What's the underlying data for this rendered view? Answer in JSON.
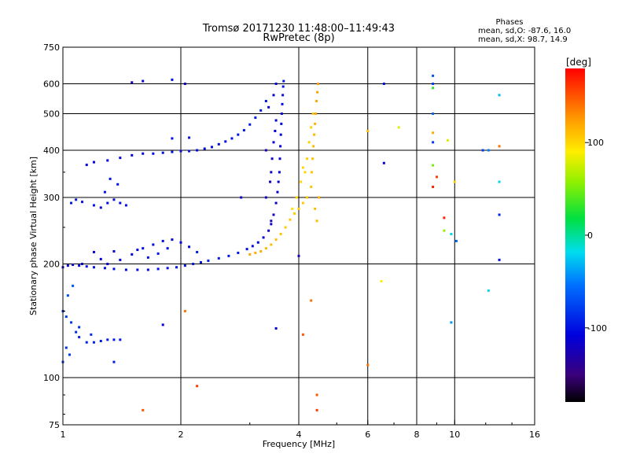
{
  "header": {
    "title": "Tromsø 20171230 11:48:00–11:49:43",
    "subtitle": "RwPretec (8p)",
    "stats_title": "Phases",
    "stats_o": "mean, sd,O: -87.6, 16.0",
    "stats_x": "mean, sd,X:  98.7, 14.9"
  },
  "chart_data": {
    "type": "scatter",
    "xlabel": "Frequency [MHz]",
    "ylabel": "Stationary phase Virtual Height [km]",
    "x_scale": "log",
    "y_scale": "log",
    "xlim": [
      1,
      16
    ],
    "ylim": [
      75,
      750
    ],
    "x_ticks": [
      1,
      2,
      4,
      6,
      8,
      10,
      16
    ],
    "x_tick_labels": [
      "1",
      "2",
      "4",
      "6",
      "8",
      "10",
      "16"
    ],
    "x_gridlines": [
      2,
      4,
      6,
      8,
      10
    ],
    "y_ticks": [
      75,
      100,
      200,
      300,
      400,
      500,
      600,
      750
    ],
    "y_tick_labels": [
      "75",
      "100",
      "200",
      "300",
      "400",
      "500",
      "600",
      "750"
    ],
    "y_gridlines": [
      100,
      200,
      300,
      400,
      500,
      600
    ],
    "grid": true,
    "colorbar": {
      "label": "[deg]",
      "range": [
        -180,
        180
      ],
      "ticks": [
        -100,
        0,
        100
      ],
      "tick_labels": [
        "-100",
        "0",
        "100"
      ]
    },
    "series": [
      {
        "points": [
          [
            1.0,
            196,
            -115
          ],
          [
            1.03,
            198,
            -112
          ],
          [
            1.06,
            199,
            -110
          ],
          [
            1.1,
            198,
            -108
          ],
          [
            1.15,
            197,
            -106
          ],
          [
            1.2,
            196,
            -105
          ],
          [
            1.28,
            195,
            -104
          ],
          [
            1.35,
            194,
            -103
          ],
          [
            1.45,
            193,
            -103
          ],
          [
            1.55,
            193,
            -103
          ],
          [
            1.65,
            193,
            -102
          ],
          [
            1.75,
            194,
            -101
          ],
          [
            1.85,
            195,
            -100
          ],
          [
            1.95,
            196,
            -100
          ],
          [
            2.05,
            198,
            -99
          ],
          [
            2.15,
            200,
            -98
          ],
          [
            2.25,
            202,
            -97
          ],
          [
            2.35,
            204,
            -96
          ],
          [
            2.5,
            207,
            -95
          ],
          [
            2.65,
            210,
            -96
          ],
          [
            2.8,
            214,
            -98
          ],
          [
            2.95,
            219,
            -101
          ],
          [
            3.05,
            223,
            -104
          ],
          [
            3.15,
            228,
            -108
          ],
          [
            3.25,
            235,
            -112
          ],
          [
            3.35,
            245,
            -116
          ],
          [
            3.4,
            255,
            -118
          ],
          [
            3.45,
            270,
            -120
          ],
          [
            3.5,
            290,
            -118
          ],
          [
            3.53,
            310,
            -115
          ],
          [
            3.55,
            330,
            -113
          ],
          [
            3.57,
            350,
            -112
          ],
          [
            3.58,
            380,
            -110
          ],
          [
            3.59,
            410,
            -108
          ],
          [
            3.6,
            440,
            -106
          ],
          [
            3.61,
            470,
            -104
          ],
          [
            3.62,
            500,
            -103
          ],
          [
            3.63,
            530,
            -102
          ],
          [
            3.64,
            560,
            -100
          ],
          [
            3.65,
            590,
            -99
          ],
          [
            3.66,
            610,
            -98
          ],
          [
            3.3,
            300,
            -120
          ],
          [
            3.4,
            350,
            -118
          ],
          [
            3.45,
            420,
            -115
          ],
          [
            3.5,
            480,
            -112
          ],
          [
            3.35,
            520,
            -110
          ],
          [
            3.45,
            560,
            -108
          ],
          [
            3.5,
            600,
            -105
          ],
          [
            3.3,
            400,
            -122
          ],
          [
            3.4,
            260,
            -125
          ],
          [
            3.38,
            330,
            -119
          ],
          [
            3.42,
            380,
            -117
          ],
          [
            3.48,
            450,
            -111
          ]
        ]
      },
      {
        "points": [
          [
            1.3,
            200,
            -110
          ],
          [
            1.4,
            205,
            -108
          ],
          [
            1.5,
            212,
            -106
          ],
          [
            1.6,
            220,
            -104
          ],
          [
            1.7,
            225,
            -103
          ],
          [
            1.8,
            230,
            -104
          ],
          [
            1.9,
            232,
            -106
          ],
          [
            2.0,
            228,
            -107
          ],
          [
            2.1,
            222,
            -105
          ],
          [
            1.25,
            206,
            -108
          ],
          [
            1.12,
            200,
            -115
          ],
          [
            1.2,
            215,
            -112
          ],
          [
            1.35,
            216,
            -110
          ],
          [
            1.55,
            218,
            -109
          ],
          [
            1.65,
            208,
            -100
          ],
          [
            1.75,
            213,
            -98
          ],
          [
            1.85,
            220,
            -102
          ],
          [
            2.2,
            215,
            -96
          ]
        ]
      },
      {
        "points": [
          [
            1.3,
            376,
            -108
          ],
          [
            1.4,
            382,
            -107
          ],
          [
            1.5,
            388,
            -106
          ],
          [
            1.6,
            392,
            -105
          ],
          [
            1.7,
            392,
            -104
          ],
          [
            1.8,
            394,
            -103
          ],
          [
            1.9,
            396,
            -103
          ],
          [
            2.0,
            398,
            -102
          ],
          [
            2.1,
            398,
            -101
          ],
          [
            2.2,
            400,
            -102
          ],
          [
            2.3,
            404,
            -103
          ],
          [
            2.4,
            408,
            -104
          ],
          [
            2.5,
            415,
            -103
          ],
          [
            2.6,
            422,
            -102
          ],
          [
            2.7,
            430,
            -100
          ],
          [
            2.8,
            440,
            -98
          ],
          [
            2.9,
            452,
            -97
          ],
          [
            3.0,
            468,
            -96
          ],
          [
            3.1,
            488,
            -95
          ],
          [
            3.2,
            510,
            -96
          ],
          [
            3.3,
            540,
            -97
          ],
          [
            1.15,
            366,
            -110
          ],
          [
            1.2,
            372,
            -109
          ],
          [
            1.9,
            430,
            -100
          ],
          [
            2.1,
            432,
            -99
          ]
        ]
      },
      {
        "points": [
          [
            1.05,
            290,
            -100
          ],
          [
            1.08,
            296,
            -98
          ],
          [
            1.12,
            292,
            -99
          ],
          [
            1.2,
            286,
            -101
          ],
          [
            1.25,
            282,
            -104
          ],
          [
            1.3,
            290,
            -103
          ],
          [
            1.35,
            296,
            -102
          ],
          [
            1.4,
            290,
            -101
          ],
          [
            1.45,
            286,
            -100
          ],
          [
            1.28,
            310,
            -99
          ],
          [
            1.38,
            325,
            -98
          ],
          [
            1.32,
            336,
            -97
          ]
        ]
      },
      {
        "points": [
          [
            1.0,
            150,
            -78
          ],
          [
            1.02,
            145,
            -80
          ],
          [
            1.05,
            140,
            -84
          ],
          [
            1.08,
            132,
            -88
          ],
          [
            1.1,
            128,
            -90
          ],
          [
            1.15,
            124,
            -92
          ],
          [
            1.2,
            124,
            -93
          ],
          [
            1.25,
            125,
            -94
          ],
          [
            1.3,
            126,
            -95
          ],
          [
            1.35,
            126,
            -96
          ],
          [
            1.4,
            126,
            -96
          ],
          [
            1.03,
            165,
            -70
          ],
          [
            1.06,
            175,
            -68
          ],
          [
            1.0,
            110,
            -82
          ],
          [
            1.04,
            115,
            -80
          ],
          [
            1.02,
            120,
            -85
          ],
          [
            1.1,
            136,
            -86
          ],
          [
            1.18,
            130,
            -87
          ]
        ]
      },
      {
        "points": [
          [
            3.0,
            212,
            120
          ],
          [
            3.1,
            214,
            118
          ],
          [
            3.2,
            216,
            116
          ],
          [
            3.3,
            220,
            114
          ],
          [
            3.4,
            225,
            112
          ],
          [
            3.5,
            232,
            110
          ],
          [
            3.6,
            240,
            108
          ],
          [
            3.7,
            250,
            106
          ],
          [
            3.8,
            262,
            105
          ],
          [
            3.9,
            272,
            104
          ],
          [
            4.0,
            280,
            105
          ],
          [
            4.1,
            290,
            106
          ],
          [
            4.2,
            300,
            107
          ],
          [
            4.3,
            320,
            108
          ],
          [
            4.32,
            350,
            109
          ],
          [
            4.34,
            380,
            110
          ],
          [
            4.36,
            410,
            112
          ],
          [
            4.38,
            440,
            114
          ],
          [
            4.4,
            470,
            116
          ],
          [
            4.42,
            500,
            118
          ],
          [
            4.44,
            540,
            120
          ],
          [
            4.46,
            570,
            122
          ],
          [
            4.48,
            600,
            124
          ],
          [
            4.2,
            380,
            104
          ],
          [
            4.25,
            420,
            103
          ],
          [
            4.15,
            350,
            100
          ],
          [
            4.3,
            460,
            102
          ],
          [
            4.35,
            500,
            105
          ],
          [
            3.95,
            300,
            98
          ],
          [
            4.05,
            330,
            100
          ],
          [
            4.1,
            360,
            101
          ],
          [
            3.85,
            280,
            96
          ],
          [
            4.4,
            280,
            110
          ],
          [
            4.45,
            260,
            112
          ],
          [
            4.5,
            300,
            114
          ]
        ]
      },
      {
        "points": [
          [
            4.1,
            130,
            150
          ],
          [
            4.3,
            160,
            140
          ],
          [
            4.45,
            90,
            150
          ],
          [
            4.45,
            82,
            160
          ],
          [
            6.0,
            108,
            140
          ],
          [
            6.0,
            450,
            110
          ],
          [
            6.5,
            180,
            90
          ],
          [
            7.2,
            460,
            80
          ],
          [
            8.8,
            585,
            30
          ],
          [
            8.8,
            445,
            120
          ],
          [
            8.8,
            365,
            50
          ],
          [
            9.0,
            340,
            160
          ],
          [
            9.4,
            265,
            170
          ],
          [
            9.4,
            245,
            60
          ],
          [
            9.6,
            425,
            80
          ],
          [
            10.0,
            330,
            100
          ],
          [
            12.2,
            400,
            -50
          ],
          [
            12.2,
            170,
            -20
          ],
          [
            2.05,
            150,
            140
          ],
          [
            2.2,
            95,
            160
          ],
          [
            1.6,
            82,
            150
          ],
          [
            8.8,
            600,
            -80
          ],
          [
            8.8,
            320,
            170
          ],
          [
            13.0,
            560,
            -30
          ],
          [
            13.0,
            410,
            140
          ],
          [
            13.0,
            270,
            -90
          ]
        ]
      },
      {
        "points": [
          [
            6.6,
            370,
            -110
          ],
          [
            6.6,
            600,
            -100
          ],
          [
            8.8,
            630,
            -70
          ],
          [
            8.8,
            500,
            -60
          ],
          [
            8.8,
            420,
            -80
          ],
          [
            9.8,
            240,
            -20
          ],
          [
            9.8,
            140,
            -40
          ],
          [
            10.1,
            230,
            -60
          ],
          [
            13.0,
            205,
            -100
          ],
          [
            13.0,
            330,
            -20
          ],
          [
            11.8,
            400,
            -80
          ],
          [
            1.6,
            610,
            -110
          ],
          [
            1.5,
            605,
            -120
          ],
          [
            1.9,
            615,
            -105
          ],
          [
            1.8,
            138,
            -110
          ],
          [
            1.35,
            110,
            -95
          ],
          [
            2.05,
            600,
            -115
          ],
          [
            2.85,
            300,
            -120
          ],
          [
            4.0,
            210,
            -130
          ],
          [
            3.5,
            135,
            -110
          ]
        ]
      }
    ]
  }
}
